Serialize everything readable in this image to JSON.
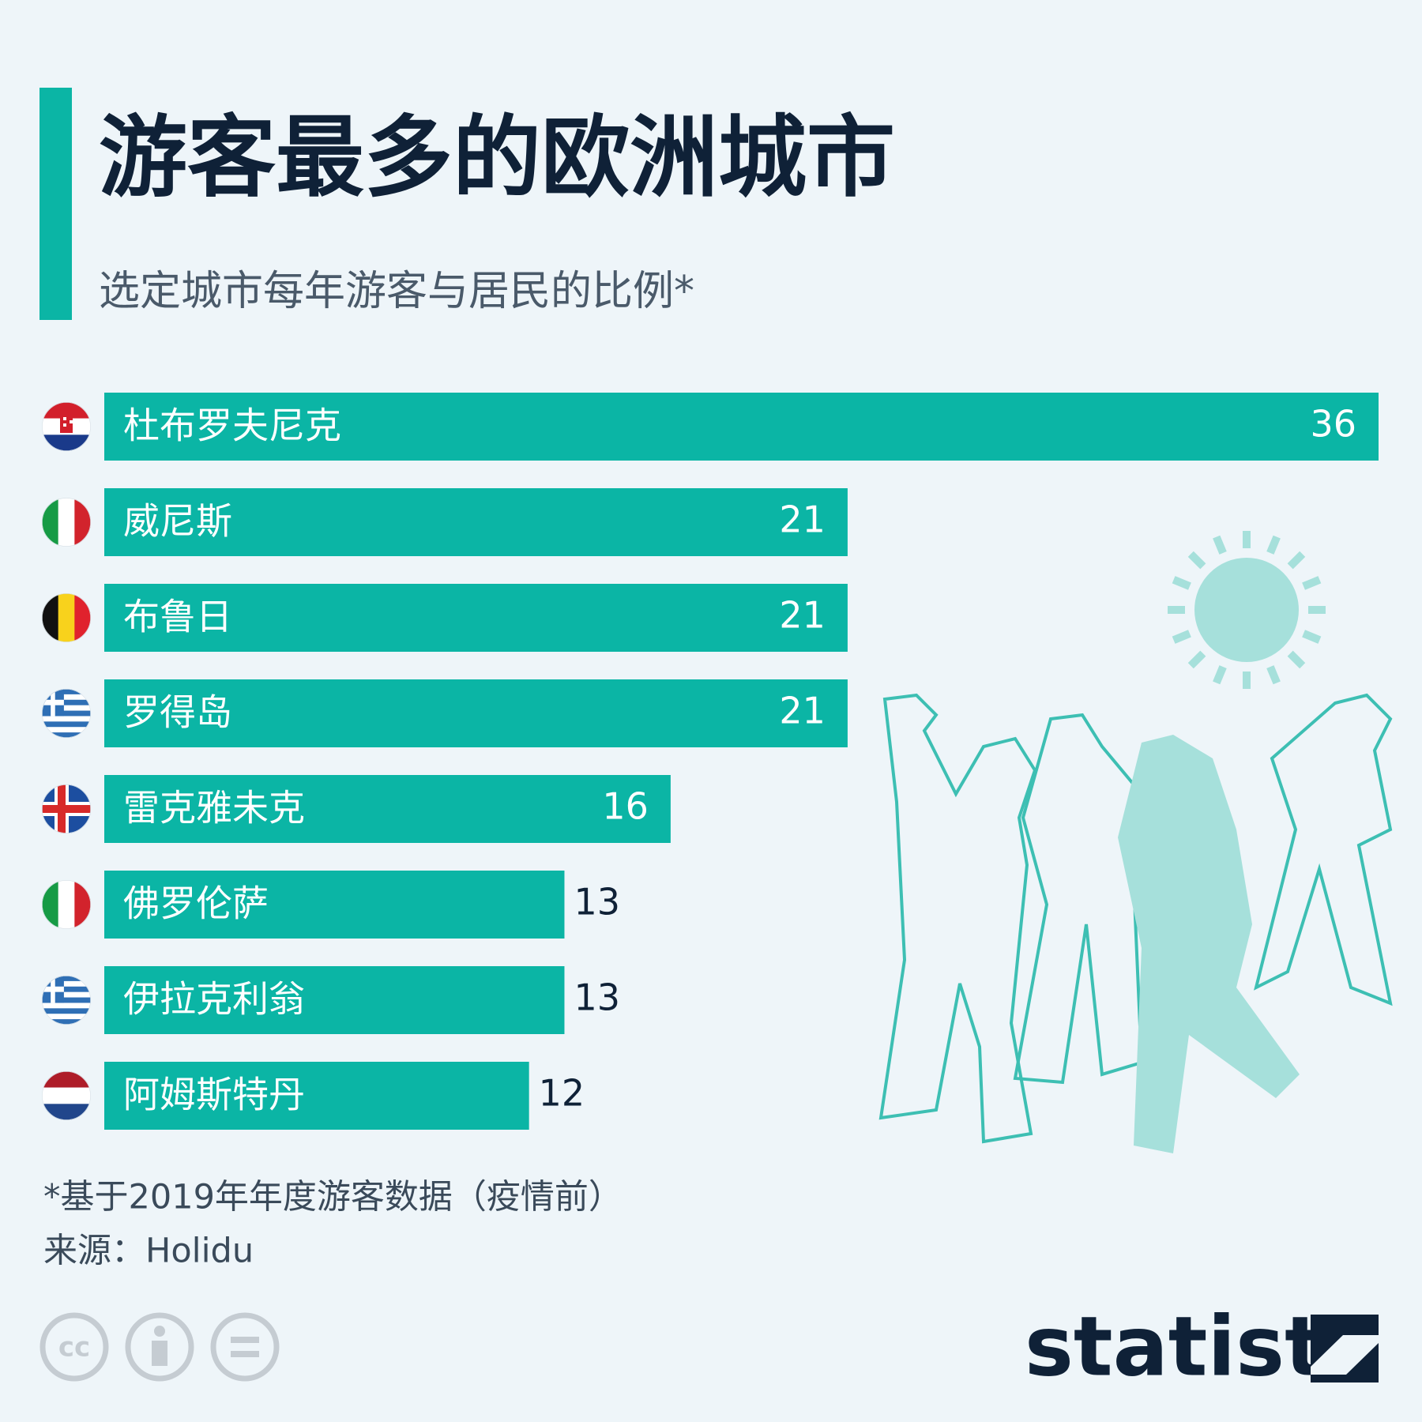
{
  "chart_data": {
    "type": "bar",
    "orientation": "horizontal",
    "title": "游客最多的欧洲城市",
    "subtitle": "选定城市每年游客与居民的比例*",
    "categories": [
      "杜布罗夫尼克",
      "威尼斯",
      "布鲁日",
      "罗得岛",
      "雷克雅未克",
      "佛罗伦萨",
      "伊拉克利翁",
      "阿姆斯特丹"
    ],
    "values": [
      36,
      21,
      21,
      21,
      16,
      13,
      13,
      12
    ],
    "color": "#0bb5a5",
    "footnote": "*基于2019年年度游客数据（疫情前）",
    "source": "来源：Holidu",
    "brand": "statista"
  }
}
